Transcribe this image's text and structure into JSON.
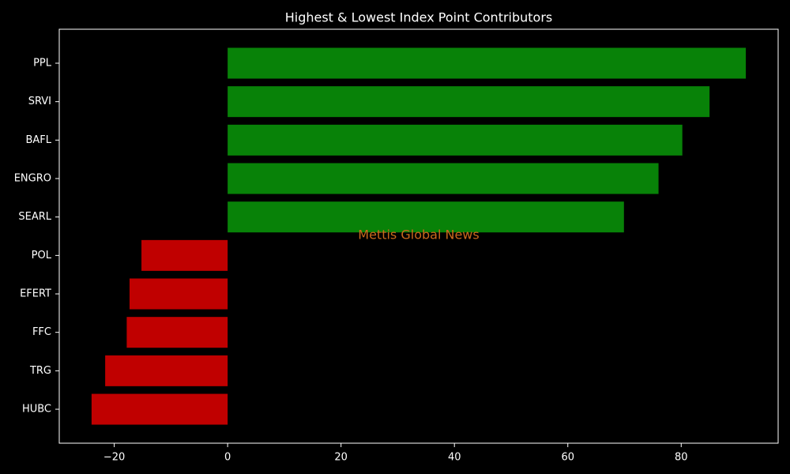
{
  "chart_data": {
    "type": "barh",
    "title": "Highest & Lowest Index Point Contributors",
    "watermark": "Mettis Global News",
    "categories": [
      "PPL",
      "SRVI",
      "BAFL",
      "ENGRO",
      "SEARL",
      "POL",
      "EFERT",
      "FFC",
      "TRG",
      "HUBC"
    ],
    "values": [
      91.4,
      85.0,
      80.2,
      76.0,
      69.9,
      -15.2,
      -17.3,
      -17.8,
      -21.6,
      -24.0
    ],
    "colors": [
      "#088208",
      "#088208",
      "#088208",
      "#088208",
      "#088208",
      "#c00000",
      "#c00000",
      "#c00000",
      "#c00000",
      "#c00000"
    ],
    "xlim": [
      -29.7,
      97.1
    ],
    "xticks": [
      {
        "value": -20,
        "label": "−20"
      },
      0,
      20,
      40,
      60,
      80
    ]
  }
}
